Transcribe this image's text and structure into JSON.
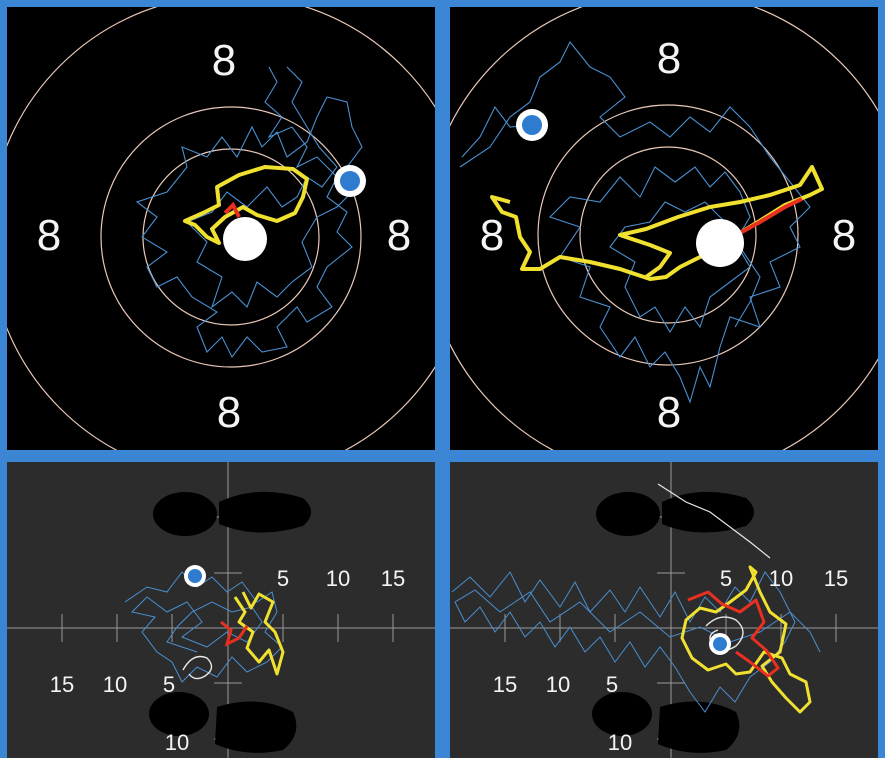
{
  "panels": {
    "top_left": {
      "ring_labels": [
        "8",
        "8",
        "8",
        "8"
      ]
    },
    "top_right": {
      "ring_labels": [
        "8",
        "8",
        "8",
        "8"
      ]
    },
    "bottom_left": {
      "x_labels_right": [
        "5",
        "10",
        "15"
      ],
      "x_labels_left": [
        "15",
        "10",
        "5"
      ],
      "y_label_bottom": "10"
    },
    "bottom_right": {
      "x_labels_right": [
        "5",
        "10",
        "15"
      ],
      "x_labels_left": [
        "15",
        "10",
        "5"
      ],
      "y_label_bottom": "10"
    }
  },
  "colors": {
    "divider": "#3a86d4",
    "target_bg": "#000000",
    "plate_bg": "#2c2c2c",
    "ring": "#e8c8b8",
    "trace_blue": "#4a8fd0",
    "trace_yellow": "#f0e030",
    "trace_red": "#e83020",
    "marker_blue": "#2e7bd0",
    "center_white": "#ffffff",
    "foot": "#000000"
  }
}
